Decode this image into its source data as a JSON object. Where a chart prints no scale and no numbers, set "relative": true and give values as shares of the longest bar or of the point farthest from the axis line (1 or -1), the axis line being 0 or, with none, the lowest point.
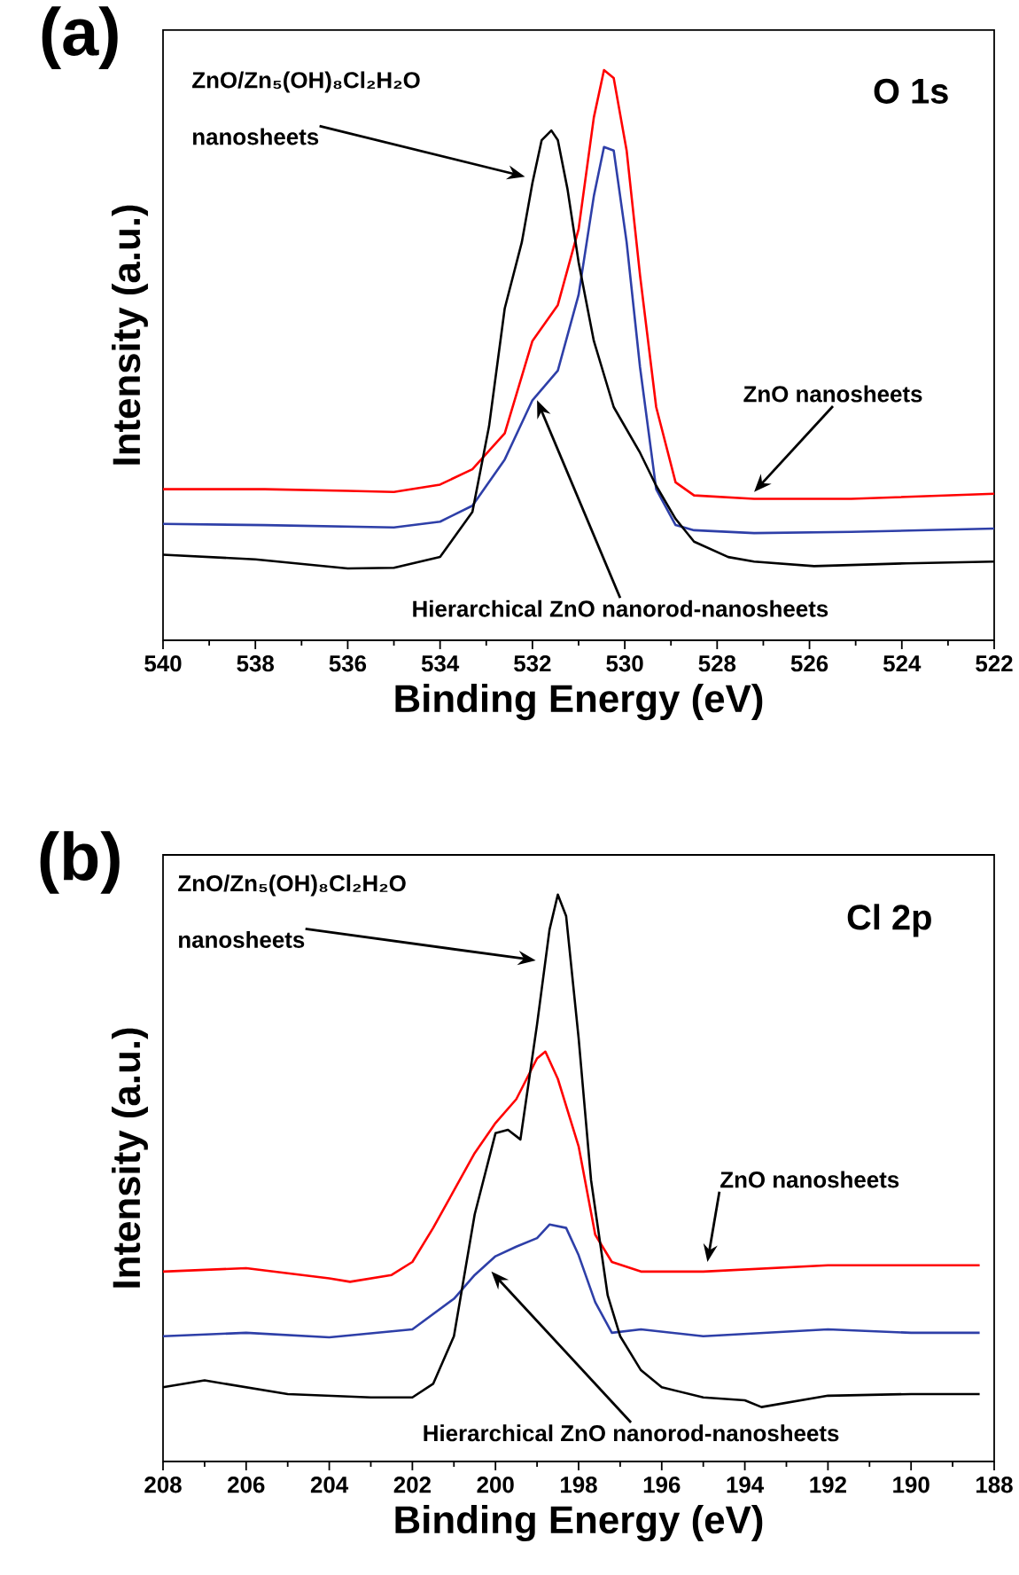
{
  "chart_data": [
    {
      "type": "line",
      "title": "(a)",
      "xlabel": "Binding Energy (eV)",
      "ylabel": "Intensity (a.u.)",
      "relative": true,
      "tick_labels": "x",
      "xlim": [
        540,
        522
      ],
      "xticks": [
        540,
        538,
        536,
        534,
        532,
        530,
        528,
        526,
        524,
        522
      ],
      "series": [
        {
          "color": "#ff0000",
          "x": [
            540,
            537.8,
            536,
            535,
            534,
            533.3,
            532.6,
            532,
            531.45,
            531,
            530.67,
            530.45,
            530.24,
            529.96,
            529.67,
            529.32,
            528.9,
            528.5,
            527.2,
            525.1,
            522
          ],
          "values": [
            0.265,
            0.265,
            0.262,
            0.26,
            0.273,
            0.3,
            0.363,
            0.525,
            0.588,
            0.721,
            0.917,
            1,
            0.986,
            0.859,
            0.64,
            0.409,
            0.277,
            0.254,
            0.248,
            0.248,
            0.257
          ]
        },
        {
          "color": "#2e3fa8",
          "x": [
            540,
            537.8,
            535,
            534,
            533.3,
            532.6,
            532,
            531.45,
            531,
            530.67,
            530.45,
            530.24,
            529.96,
            529.67,
            529.32,
            528.9,
            528.5,
            527.2,
            525.1,
            522
          ],
          "values": [
            0.204,
            0.202,
            0.198,
            0.208,
            0.236,
            0.317,
            0.421,
            0.473,
            0.606,
            0.779,
            0.865,
            0.859,
            0.698,
            0.479,
            0.265,
            0.202,
            0.193,
            0.188,
            0.19,
            0.196
          ]
        },
        {
          "color": "#000000",
          "x": [
            540,
            538,
            536,
            535,
            534,
            533.3,
            532.94,
            532.6,
            532.23,
            532,
            531.8,
            531.59,
            531.45,
            531.24,
            531,
            530.67,
            530.24,
            529.67,
            529.32,
            528.9,
            528.5,
            527.76,
            527.2,
            525.9,
            523.9,
            522
          ],
          "values": [
            0.15,
            0.142,
            0.126,
            0.127,
            0.146,
            0.225,
            0.375,
            0.582,
            0.698,
            0.802,
            0.877,
            0.894,
            0.877,
            0.791,
            0.663,
            0.525,
            0.409,
            0.329,
            0.271,
            0.213,
            0.173,
            0.146,
            0.138,
            0.13,
            0.135,
            0.138
          ]
        }
      ],
      "annotations": [
        "ZnO/Zn₅(OH)₈Cl₂H₂O",
        {
          "text": "nanosheets",
          "x": 532.16,
          "y": 0.813
        },
        {
          "text": "ZnO nanosheets",
          "x": 527.2,
          "y": 0.26
        },
        {
          "text": "Hierarchical ZnO nanorod-nanosheets",
          "x": 531.9,
          "y": 0.421
        },
        "O 1s"
      ]
    },
    {
      "type": "line",
      "title": "(b)",
      "xlabel": "Binding Energy (eV)",
      "ylabel": "Intensity (a.u.)",
      "relative": true,
      "tick_labels": "x",
      "xlim": [
        208,
        188
      ],
      "xticks": [
        208,
        206,
        204,
        202,
        200,
        198,
        196,
        194,
        192,
        190,
        188
      ],
      "series": [
        {
          "color": "#ff0000",
          "x": [
            208,
            206,
            204,
            203.5,
            202.5,
            202,
            201.5,
            201,
            200.5,
            200,
            199.5,
            199,
            198.8,
            198.5,
            198,
            197.6,
            197.2,
            196.5,
            195,
            192,
            190,
            188.35
          ],
          "values": [
            0.335,
            0.341,
            0.323,
            0.317,
            0.329,
            0.352,
            0.412,
            0.478,
            0.544,
            0.597,
            0.639,
            0.711,
            0.723,
            0.675,
            0.556,
            0.4,
            0.352,
            0.335,
            0.335,
            0.346,
            0.346,
            0.346
          ]
        },
        {
          "color": "#2e3fa8",
          "x": [
            208,
            206,
            204,
            202,
            201,
            200.5,
            200,
            199.5,
            199,
            198.7,
            198.3,
            198,
            197.6,
            197.2,
            196.5,
            195,
            192,
            190,
            188.35
          ],
          "values": [
            0.221,
            0.227,
            0.219,
            0.233,
            0.287,
            0.329,
            0.362,
            0.379,
            0.394,
            0.418,
            0.412,
            0.364,
            0.281,
            0.227,
            0.233,
            0.221,
            0.233,
            0.227,
            0.227
          ]
        },
        {
          "color": "#000000",
          "x": [
            208,
            207,
            205,
            203,
            202,
            201.5,
            201,
            200.5,
            200,
            199.7,
            199.4,
            199,
            198.7,
            198.5,
            198.3,
            198,
            197.7,
            197.3,
            197,
            196.5,
            196,
            195,
            194,
            193.6,
            192,
            190,
            188.35
          ],
          "values": [
            0.131,
            0.143,
            0.119,
            0.113,
            0.113,
            0.137,
            0.221,
            0.436,
            0.579,
            0.585,
            0.568,
            0.771,
            0.938,
            1,
            0.962,
            0.747,
            0.496,
            0.293,
            0.221,
            0.161,
            0.131,
            0.113,
            0.108,
            0.096,
            0.116,
            0.119,
            0.119
          ]
        }
      ],
      "annotations": [
        "ZnO/Zn₅(OH)₈Cl₂H₂O",
        {
          "text": "nanosheets",
          "x": 199.03,
          "y": 0.884
        },
        {
          "text": "ZnO nanosheets",
          "x": 194.9,
          "y": 0.352
        },
        {
          "text": "Hierarchical ZnO nanorod-nanosheets",
          "x": 200.1,
          "y": 0.335
        },
        "Cl 2p"
      ]
    }
  ]
}
